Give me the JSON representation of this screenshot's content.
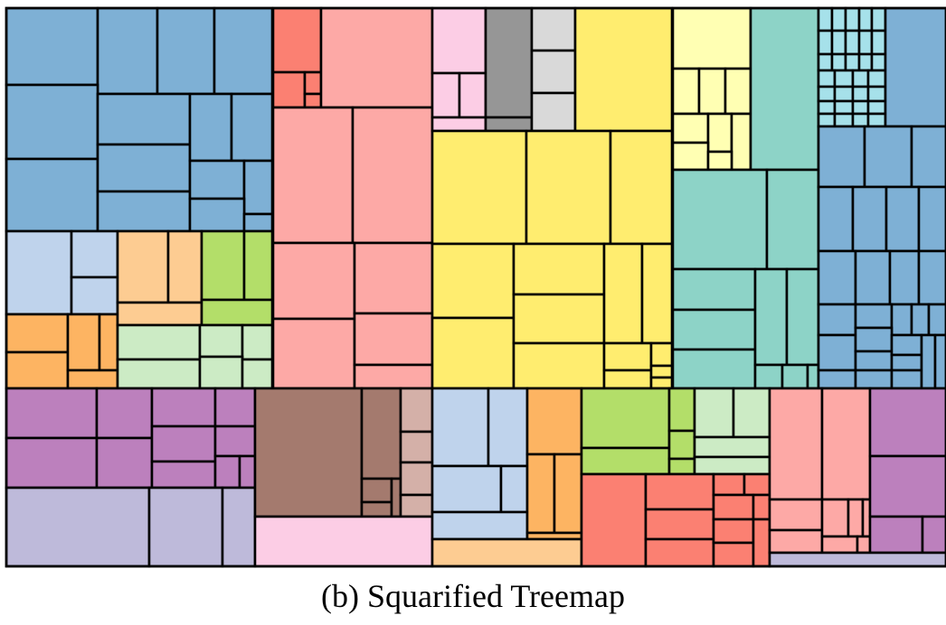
{
  "caption": "(b) Squarified Treemap",
  "colors": {
    "blue": "#7eb0d5",
    "lightblue": "#bfd3ec",
    "orange": "#fdb462",
    "peach": "#fdcc92",
    "green": "#b3de69",
    "lightgreen": "#ccebc5",
    "pink": "#fda9a6",
    "salmon": "#fb8072",
    "lightpink": "#fccde5",
    "gray": "#969696",
    "lightgray": "#d9d9d9",
    "yellow": "#ffed6f",
    "paleyellow": "#ffffb3",
    "teal": "#8dd3c7",
    "cyan": "#a6e1ea",
    "purple": "#bc80bd",
    "lavender": "#bebada",
    "brown": "#a47a6e",
    "tan": "#d4b0a8"
  }
}
